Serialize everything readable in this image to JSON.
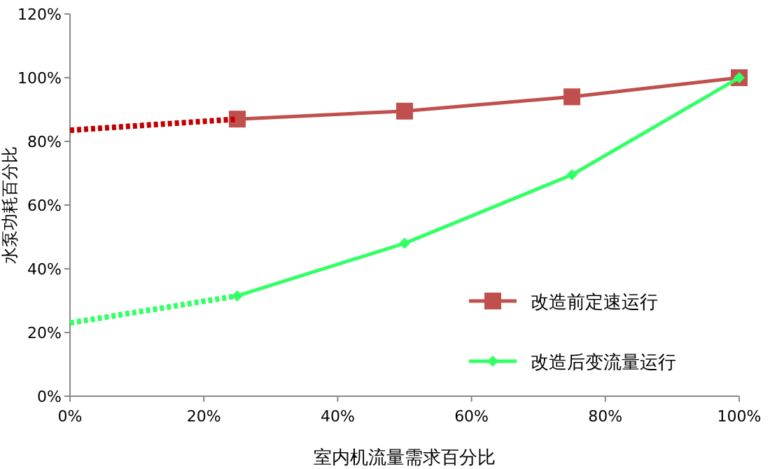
{
  "chart_data": {
    "type": "line",
    "xlabel": "室内机流量需求百分比",
    "ylabel": "水泵功耗百分比",
    "xlim": [
      0,
      100
    ],
    "ylim": [
      0,
      120
    ],
    "xticks": [
      {
        "value": 0,
        "label": "0%"
      },
      {
        "value": 20,
        "label": "20%"
      },
      {
        "value": 40,
        "label": "40%"
      },
      {
        "value": 60,
        "label": "60%"
      },
      {
        "value": 80,
        "label": "80%"
      },
      {
        "value": 100,
        "label": "100%"
      }
    ],
    "yticks": [
      {
        "value": 0,
        "label": "0%"
      },
      {
        "value": 20,
        "label": "20%"
      },
      {
        "value": 40,
        "label": "40%"
      },
      {
        "value": 60,
        "label": "60%"
      },
      {
        "value": 80,
        "label": "80%"
      },
      {
        "value": 100,
        "label": "100%"
      },
      {
        "value": 120,
        "label": "120%"
      }
    ],
    "grid": false,
    "legend": "bottom right",
    "series": [
      {
        "name": "改造前定速运行",
        "color": "#c0504d",
        "x": [
          25,
          50,
          75,
          100
        ],
        "values": [
          87,
          89.5,
          94,
          100
        ],
        "marker": "square",
        "line_style": "solid"
      },
      {
        "name": "改造后变流量运行",
        "color": "#33ff66",
        "x": [
          25,
          50,
          75,
          100
        ],
        "values": [
          31.5,
          48,
          69.5,
          100
        ],
        "marker": "diamond",
        "line_style": "solid"
      },
      {
        "color": "#c00000",
        "x": [
          0,
          25
        ],
        "values": [
          83.5,
          87
        ],
        "marker": "none",
        "line_style": "dotted"
      },
      {
        "color": "#33ff66",
        "x": [
          0,
          25
        ],
        "values": [
          23,
          31.5
        ],
        "marker": "none",
        "line_style": "dotted"
      }
    ]
  }
}
